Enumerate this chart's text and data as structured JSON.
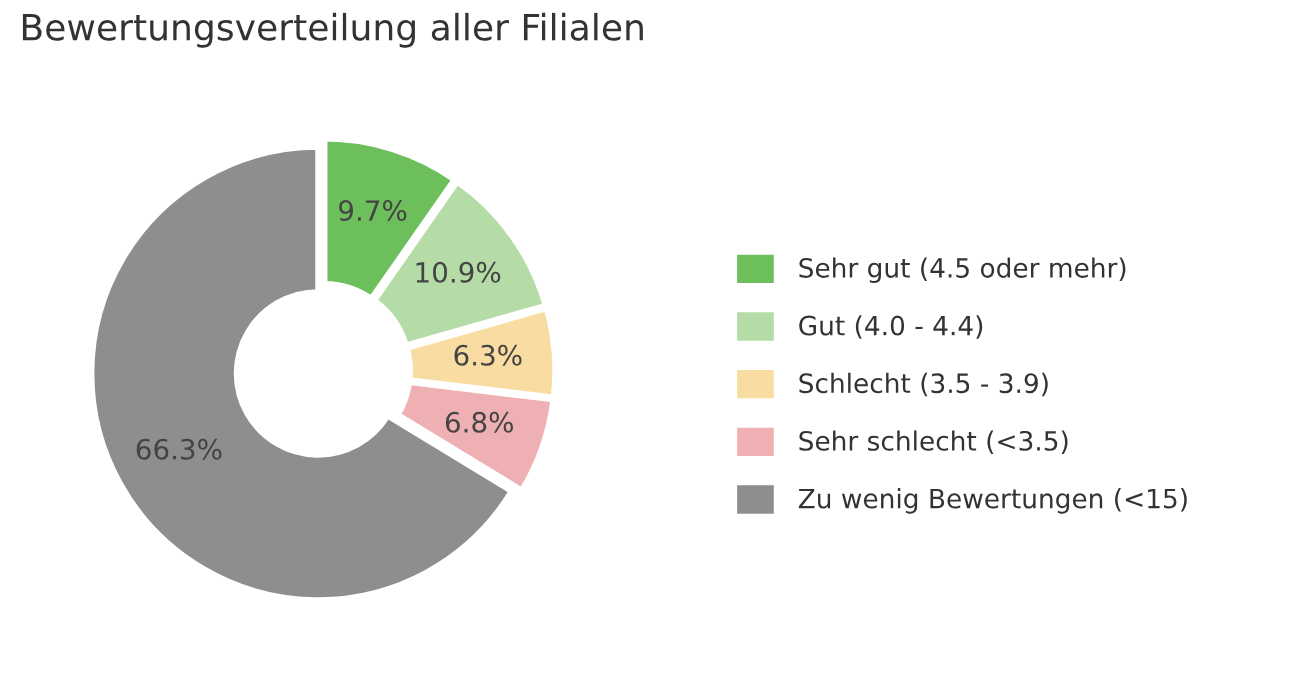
{
  "chart_data": {
    "type": "donut",
    "title": "Bewertungsverteilung aller Filialen",
    "categories": [
      "Sehr gut (4.5 oder mehr)",
      "Gut (4.0 - 4.4)",
      "Schlecht (3.5 - 3.9)",
      "Sehr schlecht (<3.5)",
      "Zu wenig Bewertungen (<15)"
    ],
    "values": [
      9.7,
      10.9,
      6.3,
      6.8,
      66.3
    ],
    "value_labels": [
      "9.7%",
      "10.9%",
      "6.3%",
      "6.8%",
      "66.3%"
    ],
    "colors": [
      "#6cbf5b",
      "#b5dca6",
      "#f9dca1",
      "#efb0b3",
      "#8e8e90"
    ],
    "legend": "right"
  }
}
